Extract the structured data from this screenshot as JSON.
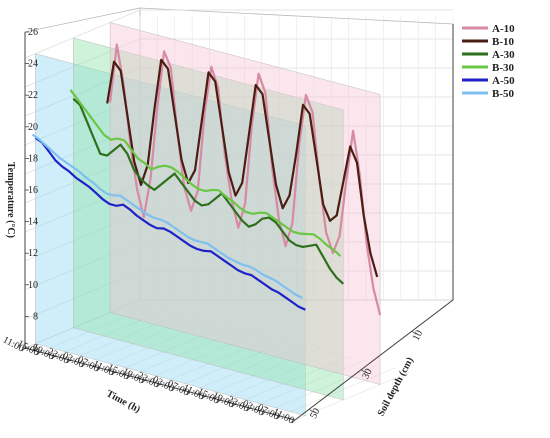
{
  "chart_data": {
    "type": "line",
    "chart_style": "3d-waterfall",
    "title": "",
    "ylabel": "Temperature (°C)",
    "xlabel": "Time (h)",
    "zlabel": "Soil depth (cm)",
    "ylim": [
      6,
      26
    ],
    "y_ticks": [
      6,
      8,
      10,
      12,
      14,
      16,
      18,
      20,
      22,
      24,
      26
    ],
    "depth_ticks": [
      "10",
      "30",
      "50"
    ],
    "time_ticks": [
      "11:00",
      "15:00",
      "19:00",
      "23:00",
      "03:00",
      "07:00",
      "11:00",
      "15:00",
      "19:00",
      "23:00",
      "03:00",
      "07:00",
      "11:00",
      "15:00",
      "19:00",
      "23:00",
      "03:00",
      "07:00",
      "11:00"
    ],
    "grid": true,
    "legend_position": "top-right",
    "series": [
      {
        "name": "A-10",
        "depth": 10,
        "color": "#d889a3",
        "values": [
          20.5,
          24.6,
          22.0,
          18.0,
          15.0,
          13.2,
          16.0,
          21.0,
          25.0,
          24.0,
          19.5,
          16.0,
          14.5,
          16.0,
          21.5,
          24.8,
          23.5,
          19.0,
          16.0,
          14.2,
          16.0,
          21.5,
          25.2,
          24.0,
          19.0,
          15.5,
          13.8,
          15.5,
          21.0,
          24.6,
          23.5,
          19.0,
          15.5,
          14.2,
          15.5,
          19.5,
          23.0,
          20.0,
          15.5,
          12.5,
          10.8
        ]
      },
      {
        "name": "B-10",
        "depth": 10,
        "color": "#4a1e12",
        "values": [
          20.5,
          23.5,
          23.0,
          20.0,
          17.0,
          15.5,
          17.0,
          21.0,
          24.5,
          24.0,
          21.0,
          18.0,
          16.5,
          17.5,
          21.0,
          24.5,
          24.0,
          21.0,
          18.0,
          16.5,
          17.5,
          21.0,
          24.5,
          24.0,
          21.0,
          18.0,
          16.5,
          17.5,
          20.5,
          24.0,
          23.5,
          20.5,
          17.5,
          16.5,
          17.0,
          19.5,
          22.0,
          21.0,
          17.5,
          15.0,
          13.5
        ]
      },
      {
        "name": "A-30",
        "depth": 30,
        "color": "#2e6f1e",
        "values": [
          21.8,
          21.5,
          20.5,
          19.5,
          18.5,
          18.5,
          19.0,
          19.5,
          19.0,
          18.0,
          17.5,
          17.2,
          17.0,
          17.5,
          18.0,
          18.5,
          18.0,
          17.5,
          17.0,
          16.8,
          17.0,
          17.5,
          18.0,
          17.5,
          17.0,
          16.5,
          16.2,
          16.5,
          17.0,
          17.2,
          17.0,
          16.5,
          16.0,
          15.8,
          15.8,
          16.0,
          16.2,
          15.5,
          14.8,
          14.3,
          14.0
        ]
      },
      {
        "name": "B-30",
        "depth": 30,
        "color": "#6ac744",
        "values": [
          22.5,
          22.0,
          21.5,
          21.0,
          20.5,
          20.0,
          19.8,
          20.0,
          20.0,
          19.5,
          19.0,
          18.8,
          18.5,
          18.8,
          19.0,
          19.0,
          18.8,
          18.5,
          18.2,
          18.0,
          18.0,
          18.2,
          18.3,
          18.0,
          17.8,
          17.5,
          17.3,
          17.3,
          17.5,
          17.6,
          17.4,
          17.2,
          17.0,
          16.8,
          16.8,
          16.9,
          17.0,
          16.8,
          16.5,
          16.3,
          16.0
        ]
      },
      {
        "name": "A-50",
        "depth": 50,
        "color": "#1f22c7",
        "values": [
          20.2,
          20.0,
          19.5,
          19.0,
          18.7,
          18.5,
          18.2,
          18.0,
          17.8,
          17.5,
          17.2,
          17.0,
          17.0,
          17.2,
          17.0,
          16.7,
          16.5,
          16.3,
          16.2,
          16.3,
          16.2,
          16.0,
          15.8,
          15.6,
          15.5,
          15.5,
          15.6,
          15.4,
          15.2,
          15.0,
          14.8,
          14.7,
          14.7,
          14.5,
          14.3,
          14.1,
          14.0,
          13.8,
          13.6,
          13.4,
          13.3
        ]
      },
      {
        "name": "B-50",
        "depth": 50,
        "color": "#7fc0ee",
        "values": [
          20.5,
          20.3,
          20.0,
          19.7,
          19.4,
          19.2,
          19.0,
          18.8,
          18.5,
          18.3,
          18.0,
          17.8,
          17.8,
          17.9,
          17.7,
          17.5,
          17.3,
          17.1,
          17.0,
          17.0,
          16.9,
          16.7,
          16.5,
          16.3,
          16.2,
          16.2,
          16.2,
          16.0,
          15.8,
          15.6,
          15.5,
          15.4,
          15.4,
          15.3,
          15.1,
          15.0,
          14.9,
          14.7,
          14.5,
          14.3,
          14.2
        ]
      }
    ]
  }
}
